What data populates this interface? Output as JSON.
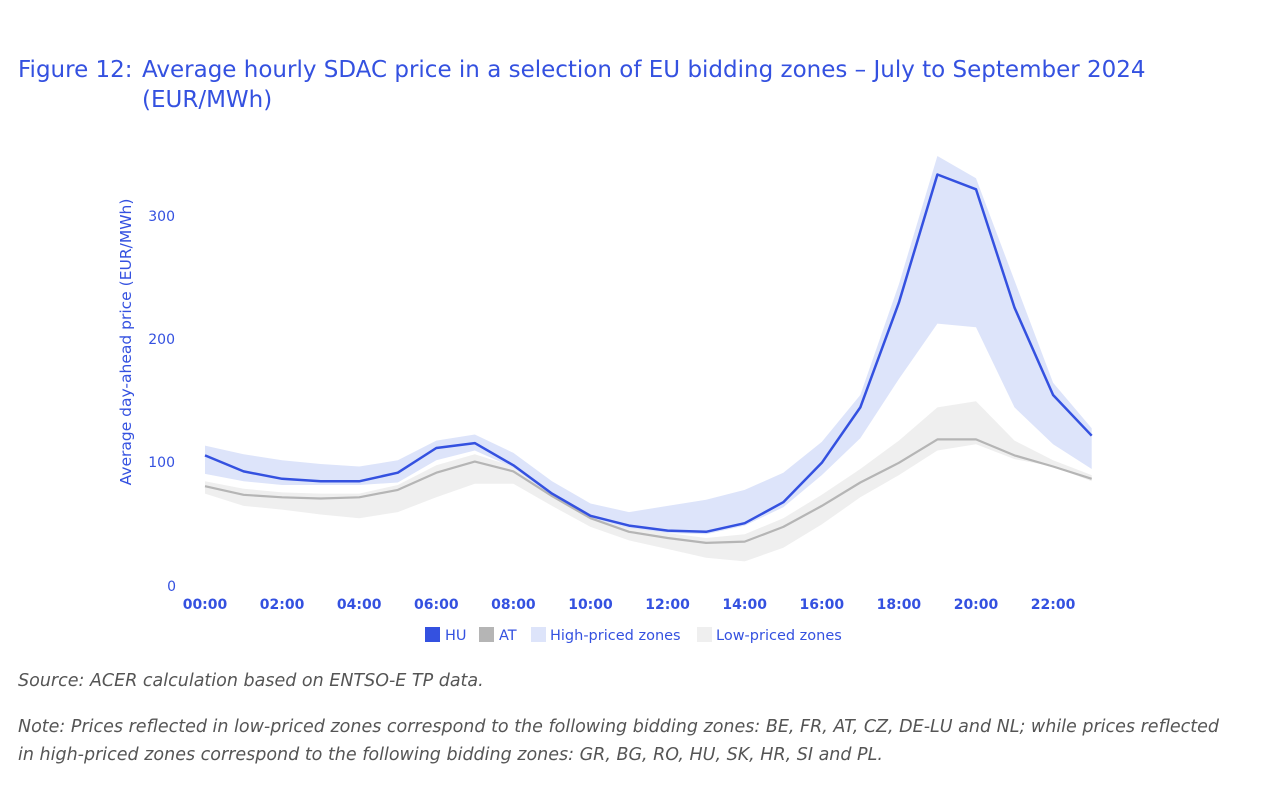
{
  "figure": {
    "number": "Figure 12:",
    "title": "Average hourly SDAC price in a selection of EU bidding zones – July to September 2024 (EUR/MWh)"
  },
  "source": "Source: ACER calculation based on ENTSO-E TP data.",
  "note": "Note: Prices reflected in low-priced zones correspond to the following bidding zones: BE, FR, AT, CZ, DE-LU and NL; while prices reflected in high-priced zones correspond to the following bidding zones: GR, BG, RO, HU, SK, HR, SI and PL.",
  "colors": {
    "hu": "#3451e0",
    "at": "#b5b5b5",
    "high_band": "#dde4fa",
    "low_band": "#efefef",
    "text": "#3451e0"
  },
  "chart_data": {
    "type": "line",
    "title": "",
    "ylabel": "Average day-ahead price (EUR/MWh)",
    "xlabel": "",
    "ylim": [
      0,
      350
    ],
    "yticks": [
      0,
      100,
      200,
      300
    ],
    "xticks": [
      "00:00",
      "02:00",
      "04:00",
      "06:00",
      "08:00",
      "10:00",
      "12:00",
      "14:00",
      "16:00",
      "18:00",
      "20:00",
      "22:00"
    ],
    "x": [
      "00:00",
      "01:00",
      "02:00",
      "03:00",
      "04:00",
      "05:00",
      "06:00",
      "07:00",
      "08:00",
      "09:00",
      "10:00",
      "11:00",
      "12:00",
      "13:00",
      "14:00",
      "15:00",
      "16:00",
      "17:00",
      "18:00",
      "19:00",
      "20:00",
      "21:00",
      "22:00",
      "23:00"
    ],
    "series": [
      {
        "name": "HU",
        "kind": "line",
        "values": [
          106,
          93,
          87,
          85,
          85,
          92,
          112,
          116,
          98,
          75,
          57,
          49,
          45,
          44,
          51,
          68,
          100,
          145,
          230,
          334,
          322,
          226,
          155,
          122
        ]
      },
      {
        "name": "AT",
        "kind": "line",
        "values": [
          81,
          74,
          72,
          71,
          72,
          78,
          92,
          101,
          93,
          73,
          55,
          44,
          39,
          35,
          36,
          48,
          65,
          84,
          100,
          119,
          119,
          106,
          97,
          87
        ]
      },
      {
        "name": "High-priced zones",
        "kind": "band",
        "upper": [
          114,
          107,
          102,
          99,
          97,
          102,
          118,
          123,
          108,
          85,
          67,
          60,
          65,
          70,
          78,
          92,
          117,
          155,
          245,
          349,
          331,
          248,
          165,
          128
        ],
        "lower": [
          91,
          85,
          82,
          82,
          82,
          84,
          102,
          110,
          96,
          73,
          55,
          47,
          43,
          42,
          49,
          64,
          90,
          120,
          168,
          213,
          210,
          145,
          115,
          95
        ]
      },
      {
        "name": "Low-priced zones",
        "kind": "band",
        "upper": [
          85,
          79,
          76,
          75,
          75,
          82,
          98,
          107,
          97,
          77,
          59,
          48,
          43,
          39,
          42,
          55,
          74,
          95,
          118,
          145,
          150,
          118,
          102,
          90
        ],
        "lower": [
          75,
          65,
          62,
          58,
          55,
          60,
          72,
          83,
          83,
          65,
          48,
          37,
          30,
          23,
          20,
          31,
          50,
          72,
          90,
          110,
          115,
          103,
          97,
          85
        ]
      }
    ],
    "legend": {
      "position": "bottom"
    },
    "grid": false
  }
}
